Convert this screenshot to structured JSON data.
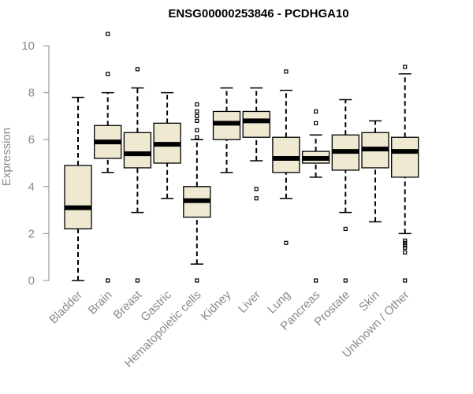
{
  "chart_data": {
    "type": "boxplot",
    "title": "ENSG00000253846 - PCDHGA10",
    "xlabel": "",
    "ylabel": "Expression",
    "ylim": [
      0,
      10.5
    ],
    "yticks": [
      0,
      2,
      4,
      6,
      8,
      10
    ],
    "box_fill": "#efe9d1",
    "categories": [
      "Bladder",
      "Brain",
      "Breast",
      "Gastric",
      "Hematopoietic cells",
      "Kidney",
      "Liver",
      "Lung",
      "Pancreas",
      "Prostate",
      "Skin",
      "Unknown / Other"
    ],
    "boxes": [
      {
        "name": "Bladder",
        "low": 0.0,
        "q1": 2.2,
        "median": 3.1,
        "q3": 4.9,
        "high": 7.8,
        "outliers": []
      },
      {
        "name": "Brain",
        "low": 4.6,
        "q1": 5.2,
        "median": 5.9,
        "q3": 6.6,
        "high": 8.0,
        "outliers": [
          10.5,
          8.8,
          0.0
        ]
      },
      {
        "name": "Breast",
        "low": 2.9,
        "q1": 4.8,
        "median": 5.4,
        "q3": 6.3,
        "high": 8.2,
        "outliers": [
          9.0,
          0.0
        ]
      },
      {
        "name": "Gastric",
        "low": 3.5,
        "q1": 5.0,
        "median": 5.8,
        "q3": 6.7,
        "high": 8.0,
        "outliers": []
      },
      {
        "name": "Hematopoietic cells",
        "low": 0.7,
        "q1": 2.7,
        "median": 3.4,
        "q3": 4.0,
        "high": 6.0,
        "outliers": [
          7.5,
          7.2,
          7.0,
          6.8,
          6.4,
          6.1,
          0.0
        ]
      },
      {
        "name": "Kidney",
        "low": 4.6,
        "q1": 6.0,
        "median": 6.7,
        "q3": 7.2,
        "high": 8.2,
        "outliers": []
      },
      {
        "name": "Liver",
        "low": 5.1,
        "q1": 6.1,
        "median": 6.8,
        "q3": 7.2,
        "high": 8.2,
        "outliers": [
          3.9,
          3.5
        ]
      },
      {
        "name": "Lung",
        "low": 3.5,
        "q1": 4.6,
        "median": 5.2,
        "q3": 6.1,
        "high": 8.1,
        "outliers": [
          8.9,
          1.6
        ]
      },
      {
        "name": "Pancreas",
        "low": 4.4,
        "q1": 5.0,
        "median": 5.2,
        "q3": 5.5,
        "high": 6.2,
        "outliers": [
          7.2,
          6.7,
          0.0
        ]
      },
      {
        "name": "Prostate",
        "low": 2.9,
        "q1": 4.7,
        "median": 5.5,
        "q3": 6.2,
        "high": 7.7,
        "outliers": [
          2.2,
          0.0
        ]
      },
      {
        "name": "Skin",
        "low": 2.5,
        "q1": 4.8,
        "median": 5.6,
        "q3": 6.3,
        "high": 6.8,
        "outliers": []
      },
      {
        "name": "Unknown / Other",
        "low": 2.0,
        "q1": 4.4,
        "median": 5.5,
        "q3": 6.1,
        "high": 8.8,
        "outliers": [
          9.1,
          1.7,
          1.6,
          1.5,
          1.4,
          1.2,
          0.0
        ]
      }
    ]
  }
}
